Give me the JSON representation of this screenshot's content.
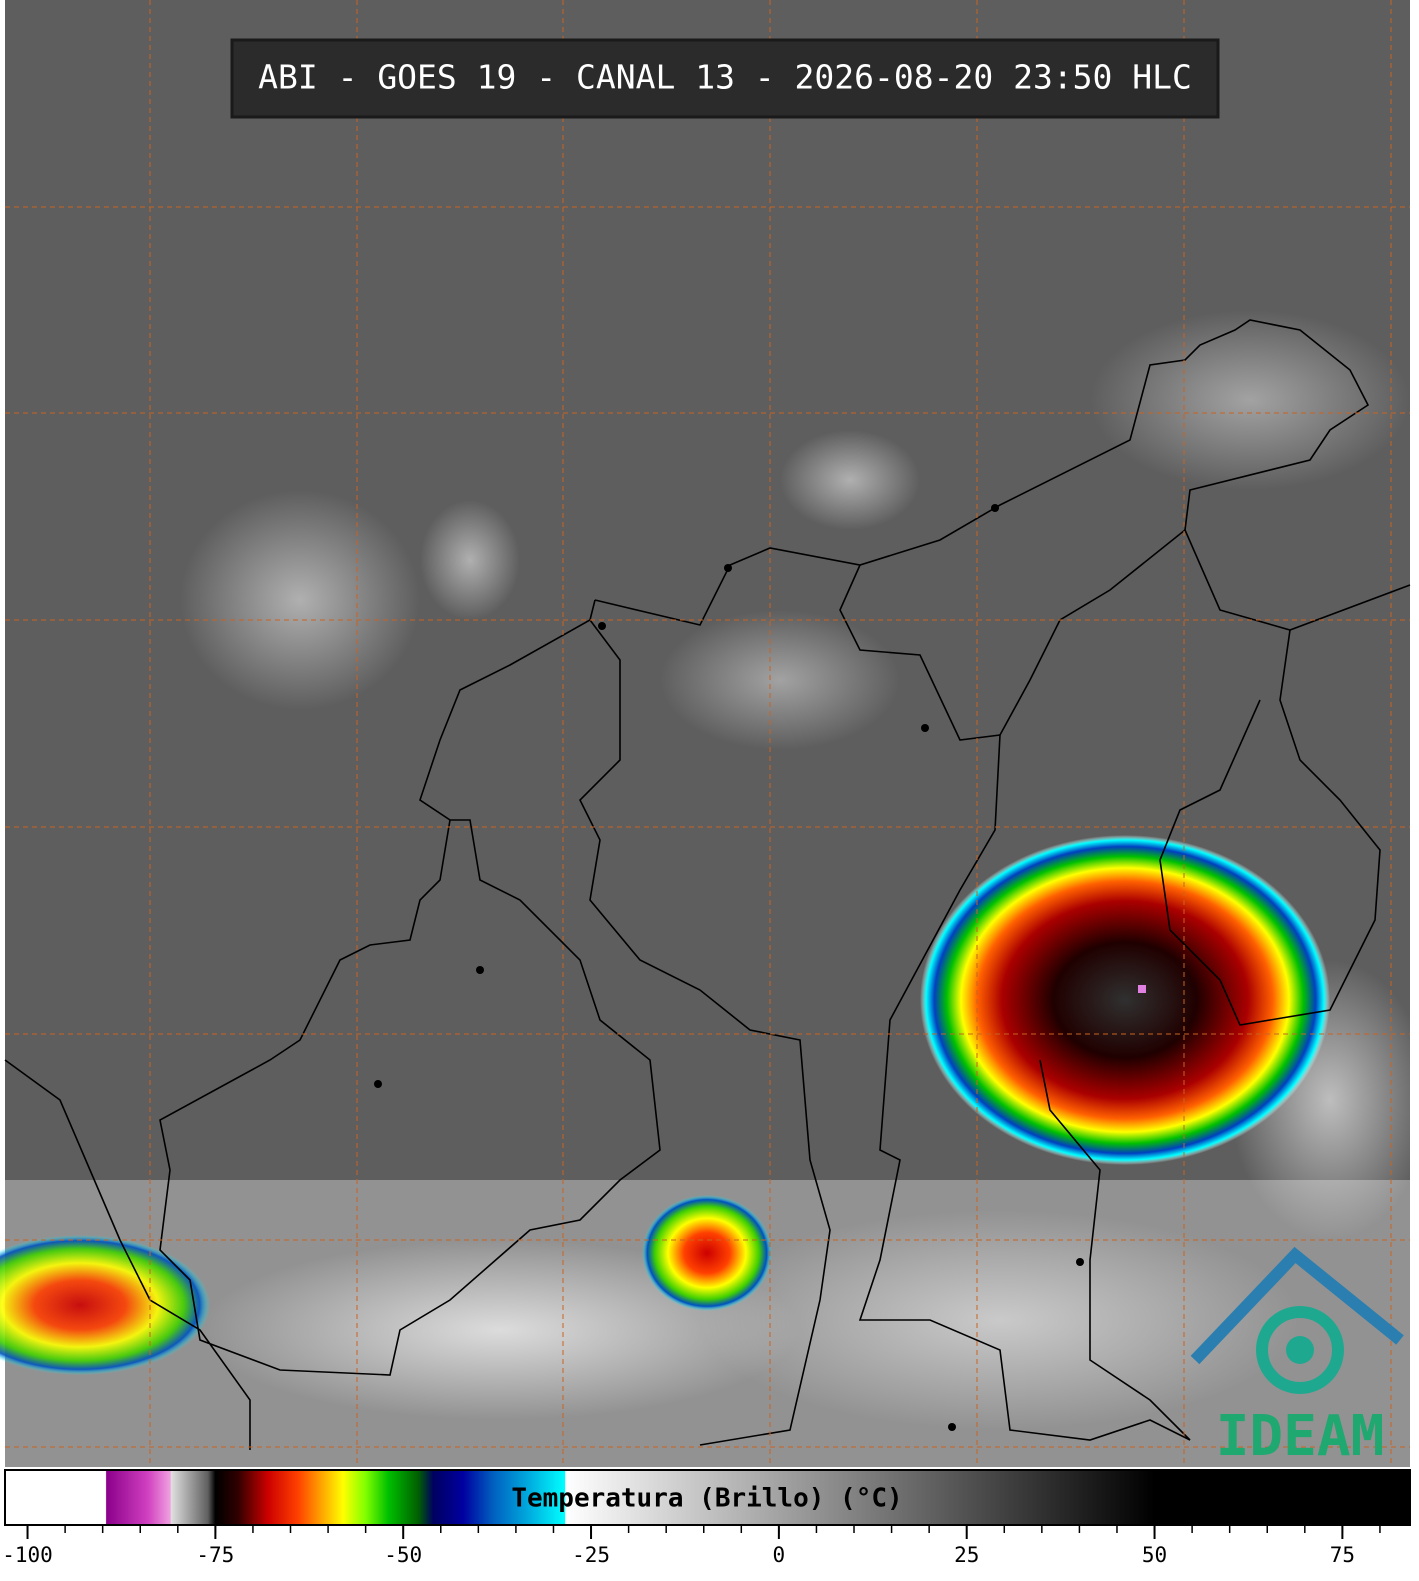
{
  "header": {
    "title": "ABI - GOES 19 - CANAL 13 - 2026-08-20 23:50 HLC"
  },
  "logo": {
    "text": "IDEAM"
  },
  "colorbar": {
    "label": "Temperatura (Brillo) (°C)",
    "lim": [
      -103,
      84
    ],
    "ticks": [
      -100,
      -75,
      -50,
      -25,
      0,
      25,
      50,
      75
    ],
    "minor_ticks": [
      -100,
      -95,
      -90,
      -85,
      -80,
      -75,
      -70,
      -65,
      -60,
      -55,
      -50,
      -45,
      -40,
      -35,
      -30,
      -25,
      -20,
      -15,
      -10,
      -5,
      0,
      5,
      10,
      15,
      20,
      25,
      30,
      35,
      40,
      45,
      50,
      55,
      60,
      65,
      70,
      75,
      80
    ],
    "stops": [
      {
        "value": -103,
        "color": "#ffffff"
      },
      {
        "value": -89.6,
        "color": "#ffffff"
      },
      {
        "value": -89.5,
        "color": "#8b008b"
      },
      {
        "value": -84,
        "color": "#d040c0"
      },
      {
        "value": -81,
        "color": "#f0a0e0"
      },
      {
        "value": -80.9,
        "color": "#e0e0e0"
      },
      {
        "value": -76,
        "color": "#606060"
      },
      {
        "value": -75,
        "color": "#000000"
      },
      {
        "value": -72,
        "color": "#300000"
      },
      {
        "value": -68,
        "color": "#cc0000"
      },
      {
        "value": -64,
        "color": "#ff4000"
      },
      {
        "value": -61,
        "color": "#ffa000"
      },
      {
        "value": -58,
        "color": "#ffff00"
      },
      {
        "value": -55,
        "color": "#80ff00"
      },
      {
        "value": -52,
        "color": "#00c000"
      },
      {
        "value": -48,
        "color": "#006000"
      },
      {
        "value": -46,
        "color": "#000060"
      },
      {
        "value": -42,
        "color": "#0000a0"
      },
      {
        "value": -38,
        "color": "#0060c0"
      },
      {
        "value": -33,
        "color": "#00b0e0"
      },
      {
        "value": -28.5,
        "color": "#00ffff"
      },
      {
        "value": -28.4,
        "color": "#ffffff"
      },
      {
        "value": 50,
        "color": "#000000"
      },
      {
        "value": 84,
        "color": "#000000"
      }
    ]
  }
}
